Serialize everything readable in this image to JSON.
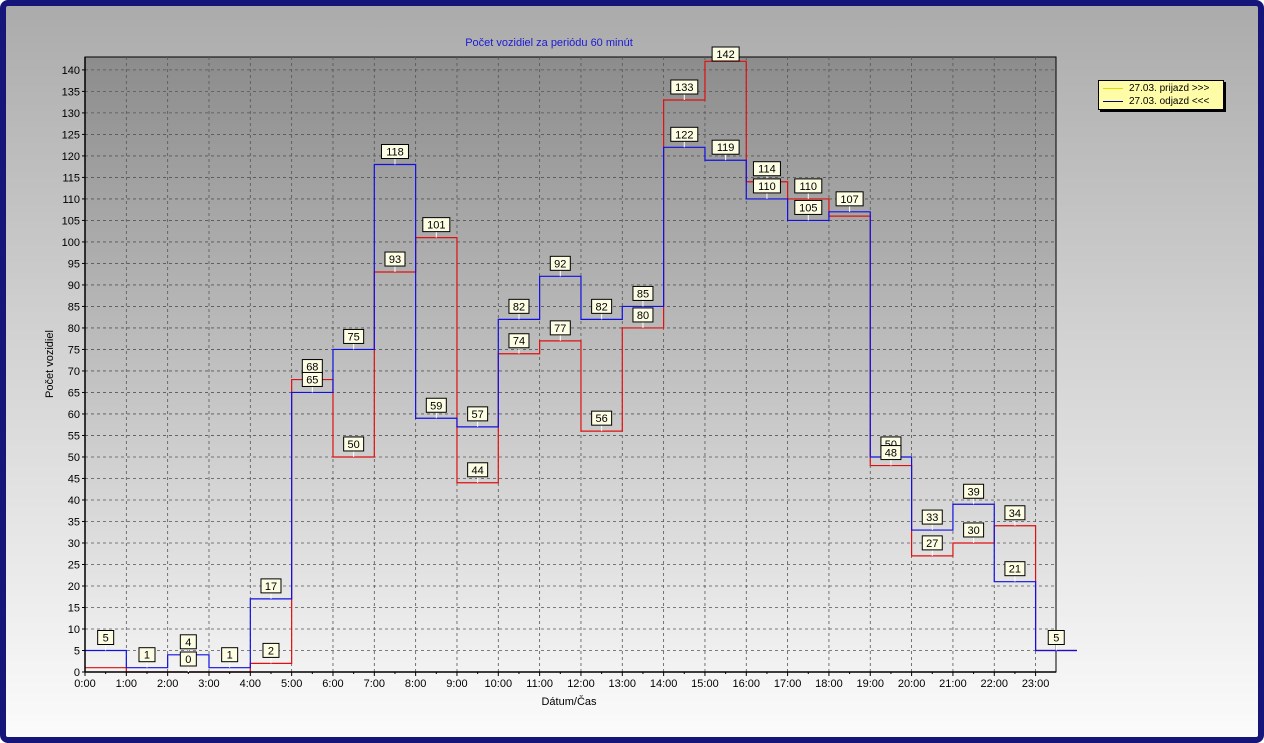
{
  "chart_data": {
    "type": "line",
    "step": true,
    "title": "Počet vozidiel za periódu 60 minút",
    "xlabel": "Dátum/Čas",
    "ylabel": "Počet vozidiel",
    "categories": [
      "0:00",
      "1:00",
      "2:00",
      "3:00",
      "4:00",
      "5:00",
      "6:00",
      "7:00",
      "8:00",
      "9:00",
      "10:00",
      "11:00",
      "12:00",
      "13:00",
      "14:00",
      "15:00",
      "16:00",
      "17:00",
      "18:00",
      "19:00",
      "20:00",
      "21:00",
      "22:00",
      "23:00"
    ],
    "ylim": [
      0,
      143
    ],
    "yticks": [
      0,
      5,
      10,
      15,
      20,
      25,
      30,
      35,
      40,
      45,
      50,
      55,
      60,
      65,
      70,
      75,
      80,
      85,
      90,
      95,
      100,
      105,
      110,
      115,
      120,
      125,
      130,
      135,
      140
    ],
    "grid": true,
    "legend_position": "top-right, outside plot",
    "series": [
      {
        "name": "27.03.  prijazd >>>",
        "color": "#e01010",
        "values": [
          1,
          0,
          0,
          0,
          2,
          68,
          50,
          93,
          101,
          44,
          74,
          77,
          56,
          80,
          133,
          142,
          114,
          110,
          106,
          48,
          27,
          30,
          34,
          5
        ]
      },
      {
        "name": "27.03.  odjazd <<<",
        "color": "#1010e0",
        "values": [
          5,
          1,
          4,
          1,
          17,
          65,
          75,
          118,
          59,
          57,
          82,
          92,
          82,
          85,
          122,
          119,
          110,
          105,
          107,
          50,
          33,
          39,
          21,
          5
        ]
      }
    ],
    "data_labels": [
      {
        "text": "5",
        "series": 1,
        "index": 0
      },
      {
        "text": "1",
        "series": 1,
        "index": 1
      },
      {
        "text": "4",
        "series": 1,
        "index": 2
      },
      {
        "text": "0",
        "series": 0,
        "index": 2
      },
      {
        "text": "1",
        "series": 1,
        "index": 3
      },
      {
        "text": "2",
        "series": 0,
        "index": 4
      },
      {
        "text": "17",
        "series": 1,
        "index": 4
      },
      {
        "text": "68",
        "series": 0,
        "index": 5
      },
      {
        "text": "65",
        "series": 1,
        "index": 5
      },
      {
        "text": "75",
        "series": 1,
        "index": 6
      },
      {
        "text": "50",
        "series": 0,
        "index": 6
      },
      {
        "text": "118",
        "series": 1,
        "index": 7
      },
      {
        "text": "93",
        "series": 0,
        "index": 7
      },
      {
        "text": "101",
        "series": 0,
        "index": 8
      },
      {
        "text": "59",
        "series": 1,
        "index": 8
      },
      {
        "text": "57",
        "series": 1,
        "index": 9
      },
      {
        "text": "44",
        "series": 0,
        "index": 9
      },
      {
        "text": "82",
        "series": 1,
        "index": 10
      },
      {
        "text": "74",
        "series": 0,
        "index": 10
      },
      {
        "text": "92",
        "series": 1,
        "index": 11
      },
      {
        "text": "77",
        "series": 0,
        "index": 11
      },
      {
        "text": "82",
        "series": 1,
        "index": 12
      },
      {
        "text": "56",
        "series": 0,
        "index": 12
      },
      {
        "text": "85",
        "series": 1,
        "index": 13
      },
      {
        "text": "80",
        "series": 0,
        "index": 13
      },
      {
        "text": "133",
        "series": 0,
        "index": 14
      },
      {
        "text": "122",
        "series": 1,
        "index": 14
      },
      {
        "text": "142",
        "series": 0,
        "index": 15
      },
      {
        "text": "119",
        "series": 1,
        "index": 15
      },
      {
        "text": "114",
        "series": 0,
        "index": 16
      },
      {
        "text": "110",
        "series": 1,
        "index": 16
      },
      {
        "text": "110",
        "series": 0,
        "index": 17
      },
      {
        "text": "105",
        "series": 1,
        "index": 17
      },
      {
        "text": "107",
        "series": 1,
        "index": 18
      },
      {
        "text": "50",
        "series": 1,
        "index": 19
      },
      {
        "text": "48",
        "series": 0,
        "index": 19
      },
      {
        "text": "33",
        "series": 1,
        "index": 20
      },
      {
        "text": "27",
        "series": 0,
        "index": 20
      },
      {
        "text": "39",
        "series": 1,
        "index": 21
      },
      {
        "text": "30",
        "series": 0,
        "index": 21
      },
      {
        "text": "34",
        "series": 0,
        "index": 22
      },
      {
        "text": "21",
        "series": 1,
        "index": 22
      },
      {
        "text": "5",
        "series": 1,
        "index": 23
      }
    ]
  }
}
